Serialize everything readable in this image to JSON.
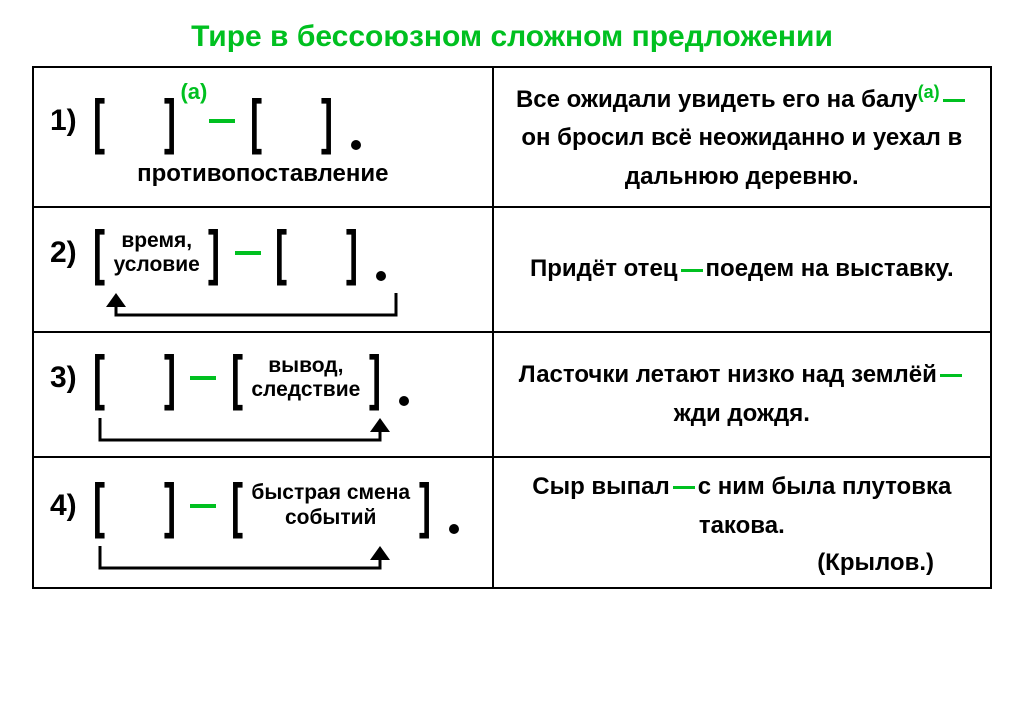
{
  "colors": {
    "accent": "#00c020",
    "black": "#000000",
    "white": "#ffffff"
  },
  "fonts": {
    "title_size": 30,
    "row_num_size": 30,
    "bracket_size": 60,
    "box_label_size": 21,
    "annot_size": 22,
    "example_size": 24,
    "label_below_size": 24
  },
  "title": "Тире в бессоюзном сложном предложении",
  "rows": [
    {
      "num": "1)",
      "box1_label": "",
      "box2_label": "",
      "over_dash": "(а)",
      "label_below": "противопоставление",
      "arrow": false,
      "example_parts": {
        "pre": "Все ожидали увидеть его на балу",
        "sup": "(а)",
        "post": "он бросил всё неожиданно и уехал в дальнюю деревню."
      }
    },
    {
      "num": "2)",
      "box1_label": "время,\nусловие",
      "box2_label": "",
      "over_dash": "",
      "label_below": "",
      "arrow": true,
      "arrow_target": "left",
      "example_parts": {
        "pre": "Придёт отец",
        "sup": "",
        "post": "поедем на выставку."
      }
    },
    {
      "num": "3)",
      "box1_label": "",
      "box2_label": "вывод,\nследствие",
      "over_dash": "",
      "label_below": "",
      "arrow": true,
      "arrow_target": "right",
      "example_parts": {
        "pre": "Ласточки летают низко над землёй",
        "sup": "",
        "post": "жди дождя."
      }
    },
    {
      "num": "4)",
      "box1_label": "",
      "box2_label": "быстрая смена\nсобытий",
      "over_dash": "",
      "label_below": "",
      "arrow": true,
      "arrow_target": "right",
      "example_parts": {
        "pre": "Сыр выпал",
        "sup": "",
        "post": "с ним была плутовка такова."
      },
      "author": "(Крылов.)"
    }
  ]
}
